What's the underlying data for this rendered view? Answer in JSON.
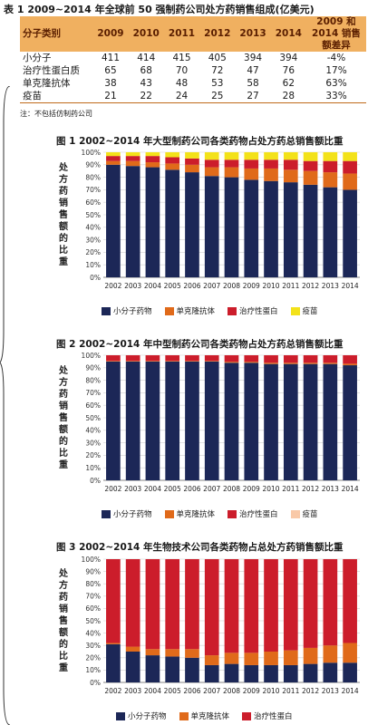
{
  "table": {
    "title": "表 1    2009~2014 年全球前 50 强制药公司处方药销售组成(亿美元)",
    "headers": [
      "分子类别",
      "2009",
      "2010",
      "2011",
      "2012",
      "2013",
      "2014",
      "2009 和 2014 销售额差异"
    ],
    "rows": [
      [
        "小分子",
        "411",
        "414",
        "415",
        "405",
        "394",
        "394",
        "-4%"
      ],
      [
        "治疗性蛋白质",
        "65",
        "68",
        "70",
        "72",
        "47",
        "76",
        "17%"
      ],
      [
        "单克隆抗体",
        "38",
        "43",
        "48",
        "53",
        "58",
        "62",
        "63%"
      ],
      [
        "疫苗",
        "21",
        "22",
        "24",
        "25",
        "27",
        "28",
        "33%"
      ]
    ],
    "note": "注：不包括仿制药公司"
  },
  "colors": {
    "small": "#1c2757",
    "mab": "#e06a1a",
    "protein": "#cc1d2b",
    "vaccine": "#f3e21a",
    "vaccine_light": "#f9c9a8"
  },
  "chart_data": [
    {
      "type": "bar",
      "title": "图 1    2002~2014 年大型制药公司各类药物占处方药总销售额比重",
      "ylabel": "处方药销售额的比重",
      "categories": [
        "2002",
        "2003",
        "2004",
        "2005",
        "2006",
        "2007",
        "2008",
        "2009",
        "2010",
        "2011",
        "2012",
        "2013",
        "2014"
      ],
      "ylim": [
        0,
        100
      ],
      "yticks": [
        "0%",
        "10%",
        "20%",
        "30%",
        "40%",
        "50%",
        "60%",
        "70%",
        "80%",
        "90%",
        "100%"
      ],
      "series": [
        {
          "name": "小分子药物",
          "values": [
            90,
            89,
            88,
            86,
            84,
            81,
            80,
            78,
            77,
            76,
            74,
            72,
            70
          ]
        },
        {
          "name": "单克隆抗体",
          "values": [
            3,
            4,
            4,
            5,
            6,
            7,
            8,
            9,
            10,
            10,
            11,
            12,
            13
          ]
        },
        {
          "name": "治疗性蛋白",
          "values": [
            4,
            4,
            5,
            5,
            5,
            6,
            6,
            7,
            7,
            8,
            8,
            9,
            10
          ]
        },
        {
          "name": "疫苗",
          "values": [
            3,
            3,
            3,
            4,
            5,
            6,
            6,
            6,
            6,
            6,
            7,
            7,
            7
          ]
        }
      ]
    },
    {
      "type": "bar",
      "title": "图 2    2002~2014 年中型制药公司各类药物占处方药总销售额比重",
      "ylabel": "处方药销售额的比重",
      "categories": [
        "2002",
        "2003",
        "2004",
        "2005",
        "2006",
        "2007",
        "2008",
        "2009",
        "2010",
        "2011",
        "2012",
        "2013",
        "2014"
      ],
      "ylim": [
        0,
        100
      ],
      "yticks": [
        "0%",
        "10%",
        "20%",
        "30%",
        "40%",
        "50%",
        "60%",
        "70%",
        "80%",
        "90%",
        "100%"
      ],
      "series": [
        {
          "name": "小分子药物",
          "values": [
            95,
            95,
            95,
            95,
            95,
            95,
            94,
            94,
            93,
            93,
            93,
            93,
            92
          ]
        },
        {
          "name": "单克隆抗体",
          "values": [
            0.5,
            0.5,
            0.5,
            0.5,
            0.5,
            0.5,
            0.8,
            0.8,
            1,
            1,
            1,
            1,
            1.2
          ]
        },
        {
          "name": "治疗性蛋白",
          "values": [
            4.5,
            4.5,
            4.5,
            4.5,
            4.5,
            4.5,
            5.2,
            5.2,
            6,
            6,
            6,
            6,
            6.8
          ]
        },
        {
          "name": "疫苗",
          "values": [
            0,
            0,
            0,
            0,
            0,
            0,
            0,
            0,
            0,
            0,
            0,
            0,
            0
          ]
        }
      ]
    },
    {
      "type": "bar",
      "title": "图 3    2002~2014 年生物技术公司各类药物占总处方药销售额比重",
      "ylabel": "处方药销售额的比重",
      "categories": [
        "2002",
        "2003",
        "2004",
        "2005",
        "2006",
        "2007",
        "2008",
        "2009",
        "2010",
        "2011",
        "2012",
        "2013",
        "2014"
      ],
      "ylim": [
        0,
        100
      ],
      "yticks": [
        "0%",
        "10%",
        "20%",
        "30%",
        "40%",
        "50%",
        "60%",
        "70%",
        "80%",
        "90%",
        "100%"
      ],
      "series": [
        {
          "name": "小分子药物",
          "values": [
            31,
            25,
            22,
            21,
            20,
            14,
            15,
            14,
            14,
            14,
            15,
            16,
            16
          ]
        },
        {
          "name": "单克隆抗体",
          "values": [
            1,
            4,
            5,
            6,
            7,
            8,
            9,
            10,
            11,
            12,
            13,
            14,
            16
          ]
        },
        {
          "name": "治疗性蛋白",
          "values": [
            68,
            71,
            73,
            73,
            73,
            78,
            76,
            76,
            75,
            74,
            72,
            70,
            68
          ]
        }
      ]
    }
  ]
}
